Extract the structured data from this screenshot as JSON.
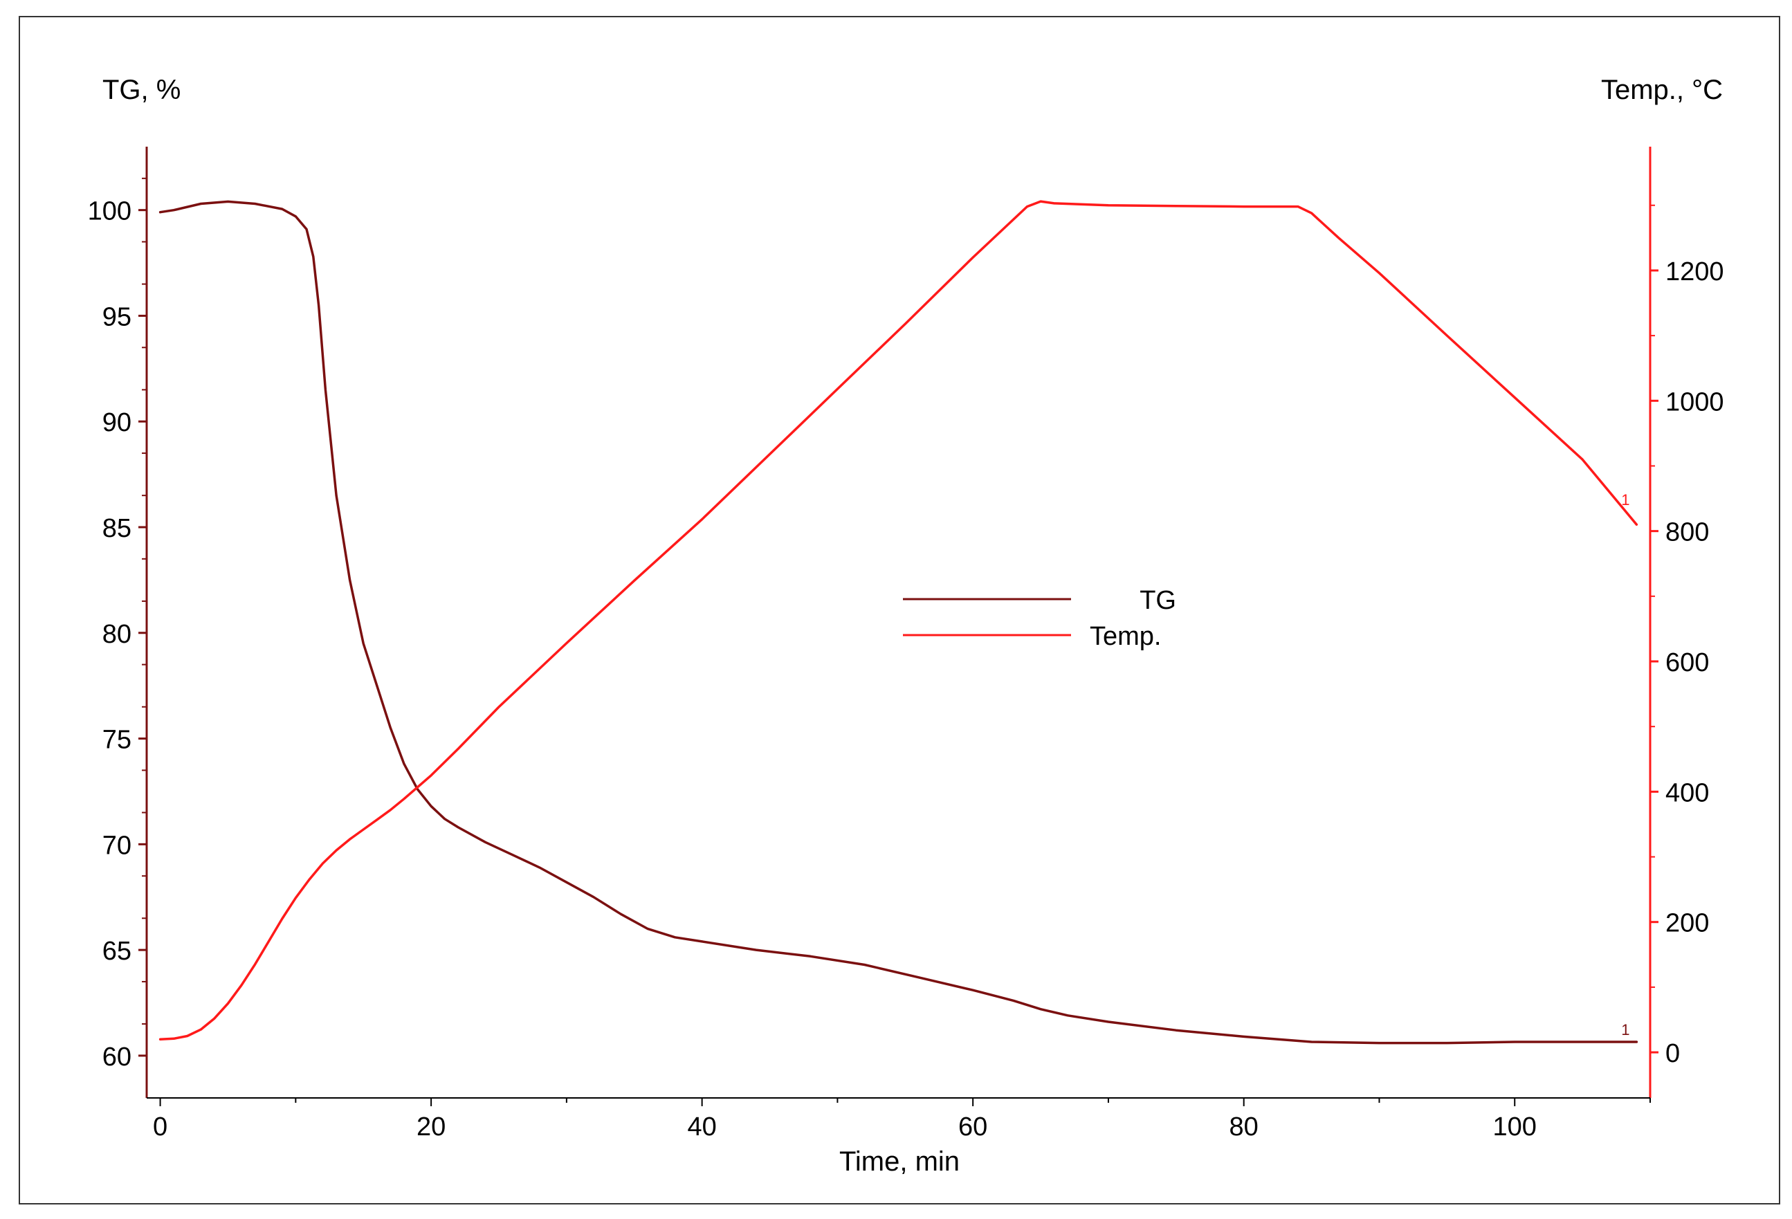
{
  "chart_data": {
    "type": "line",
    "xlabel": "Time, min",
    "y_left_label": "TG, %",
    "y_right_label": "Temp., °C",
    "xlim": [
      -1,
      110
    ],
    "y_left_lim": [
      58,
      103
    ],
    "y_right_lim": [
      -70,
      1390
    ],
    "x_ticks": [
      0,
      20,
      40,
      60,
      80,
      100
    ],
    "y_left_ticks": [
      60,
      65,
      70,
      75,
      80,
      85,
      90,
      95,
      100
    ],
    "y_right_ticks": [
      0,
      200,
      400,
      600,
      800,
      1000,
      1200
    ],
    "grid": false,
    "legend_position": "center",
    "colors": {
      "tg": "#7b1010",
      "temp": "#ff1a1a"
    },
    "series": [
      {
        "name": "TG",
        "axis": "left",
        "x": [
          0,
          1,
          3,
          5,
          7,
          9,
          10,
          10.8,
          11.3,
          11.7,
          12.2,
          13,
          14,
          15,
          16,
          17,
          18,
          19,
          20,
          21,
          22,
          24,
          26,
          28,
          30,
          32,
          34,
          36,
          38,
          40,
          44,
          48,
          52,
          56,
          60,
          63,
          65,
          67,
          70,
          75,
          80,
          85,
          90,
          95,
          100,
          105,
          109
        ],
        "y": [
          99.9,
          100,
          100.3,
          100.4,
          100.3,
          100.05,
          99.7,
          99.1,
          97.8,
          95.5,
          91.5,
          86.5,
          82.5,
          79.5,
          77.5,
          75.5,
          73.8,
          72.6,
          71.8,
          71.2,
          70.8,
          70.1,
          69.5,
          68.9,
          68.2,
          67.5,
          66.7,
          66.0,
          65.6,
          65.4,
          65.0,
          64.7,
          64.3,
          63.7,
          63.1,
          62.6,
          62.2,
          61.9,
          61.6,
          61.2,
          60.9,
          60.65,
          60.6,
          60.6,
          60.65,
          60.65,
          60.65
        ],
        "end_label": "1"
      },
      {
        "name": "Temp.",
        "axis": "right",
        "x": [
          0,
          1,
          2,
          3,
          4,
          5,
          6,
          7,
          8,
          9,
          10,
          11,
          12,
          13,
          14,
          15,
          16,
          17,
          18,
          19,
          20,
          22,
          25,
          30,
          35,
          40,
          45,
          50,
          55,
          60,
          64,
          65,
          66,
          70,
          75,
          80,
          84,
          85,
          87,
          90,
          95,
          100,
          105,
          109
        ],
        "y": [
          20,
          21,
          25,
          35,
          52,
          75,
          103,
          135,
          170,
          205,
          237,
          265,
          290,
          310,
          327,
          342,
          357,
          372,
          389,
          407,
          425,
          466,
          530,
          628,
          724,
          818,
          918,
          1018,
          1118,
          1220,
          1298,
          1306,
          1303,
          1300,
          1299,
          1298,
          1298,
          1288,
          1250,
          1196,
          1100,
          1005,
          910,
          810
        ],
        "end_label": "1"
      }
    ]
  }
}
